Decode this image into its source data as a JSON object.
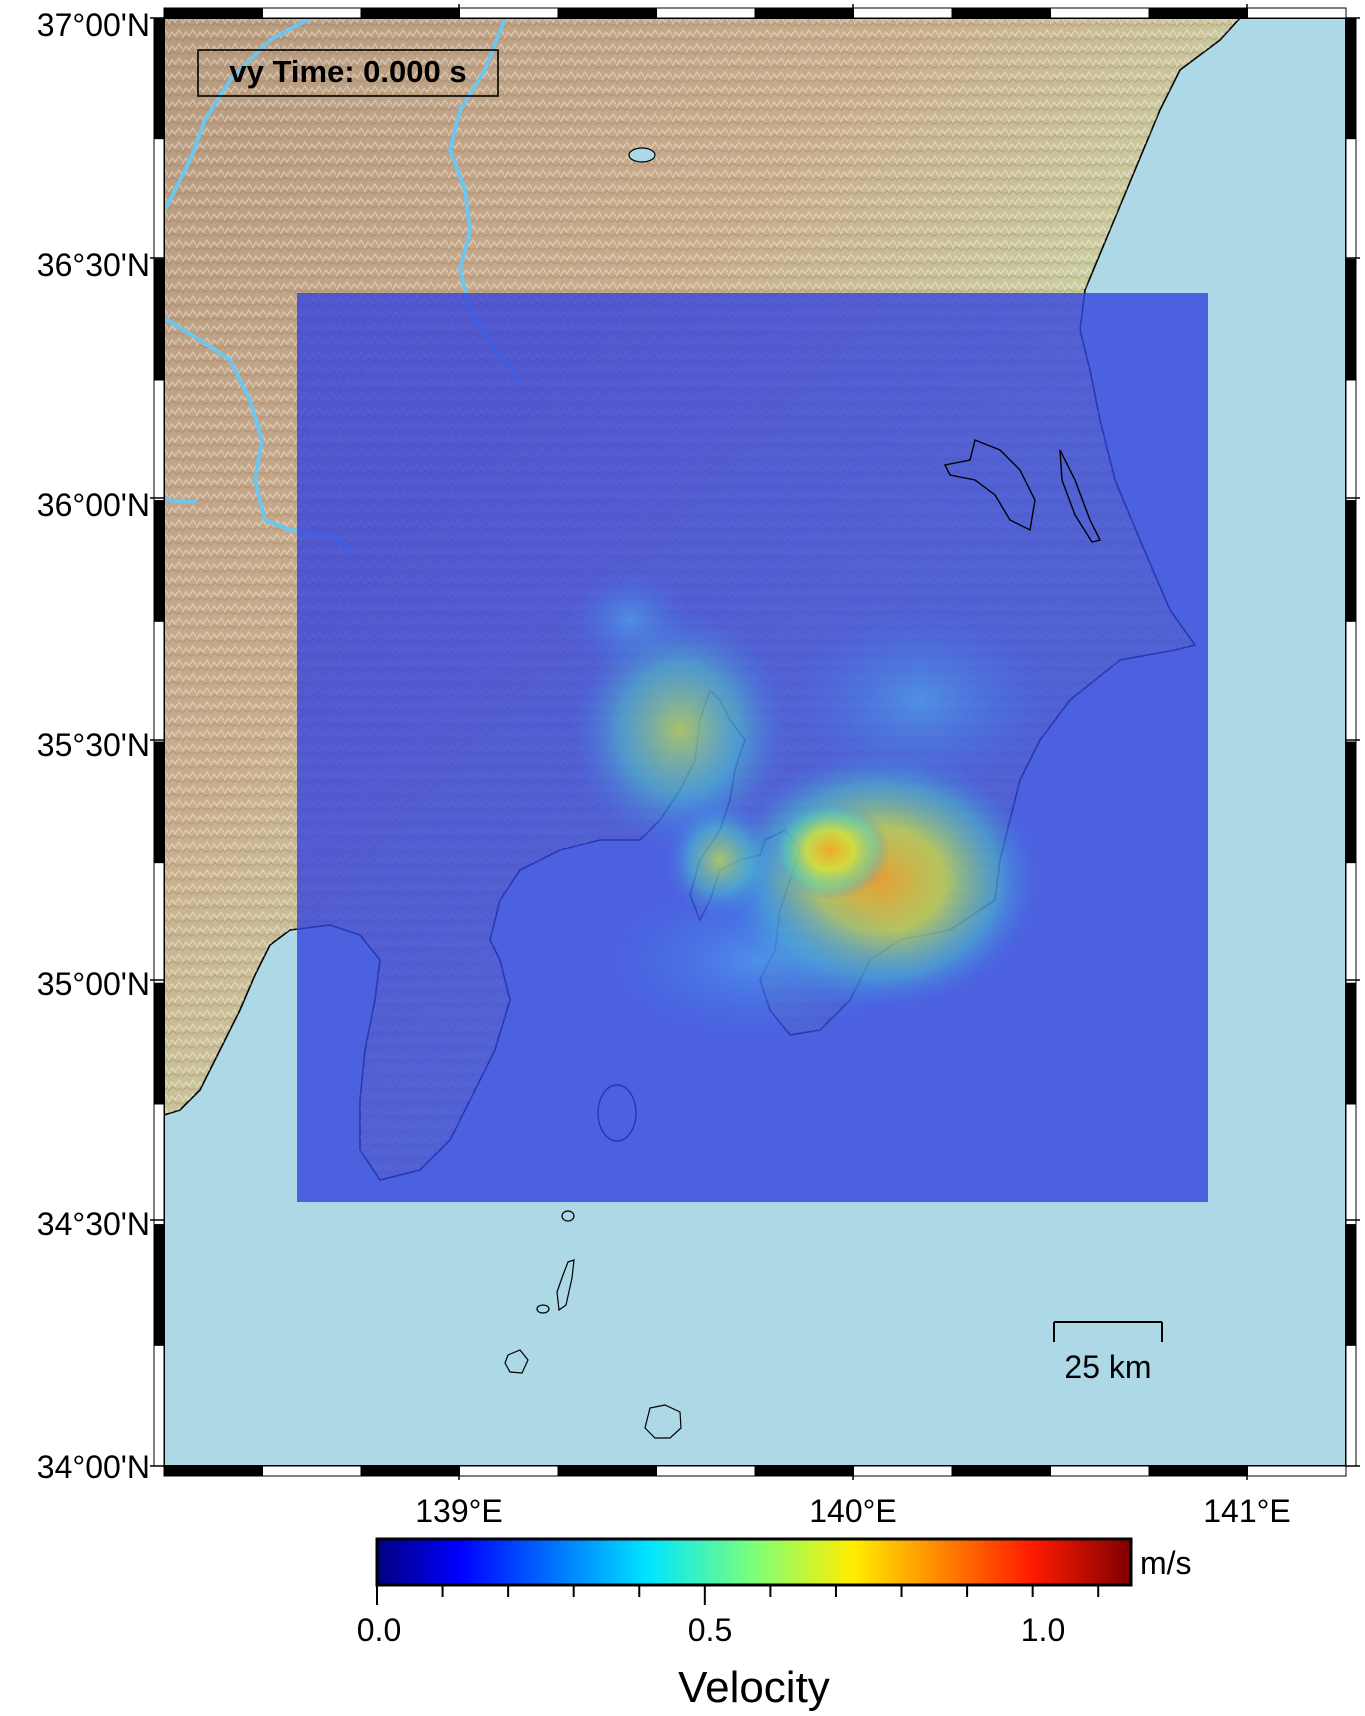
{
  "map": {
    "time_label": "vy Time: 0.000 s",
    "lat_labels": [
      "37°00'N",
      "36°30'N",
      "36°00'N",
      "35°30'N",
      "35°00'N",
      "34°30'N",
      "34°00'N"
    ],
    "lon_labels": [
      "139°E",
      "140°E",
      "141°E"
    ],
    "scale_bar_label": "25 km",
    "extent": {
      "lon_min": 138.25,
      "lon_max": 141.25,
      "lat_min": 34.0,
      "lat_max": 37.0
    },
    "colors": {
      "ocean": "#add8e6",
      "velocity_overlay": "#3344dd",
      "river": "#6ec6ee",
      "coastline": "#000000"
    }
  },
  "colorbar": {
    "title": "Velocity",
    "unit": "m/s",
    "tick_labels": [
      "0.0",
      "0.5",
      "1.0"
    ],
    "range": [
      0.0,
      1.15
    ],
    "colormap": "jet"
  }
}
